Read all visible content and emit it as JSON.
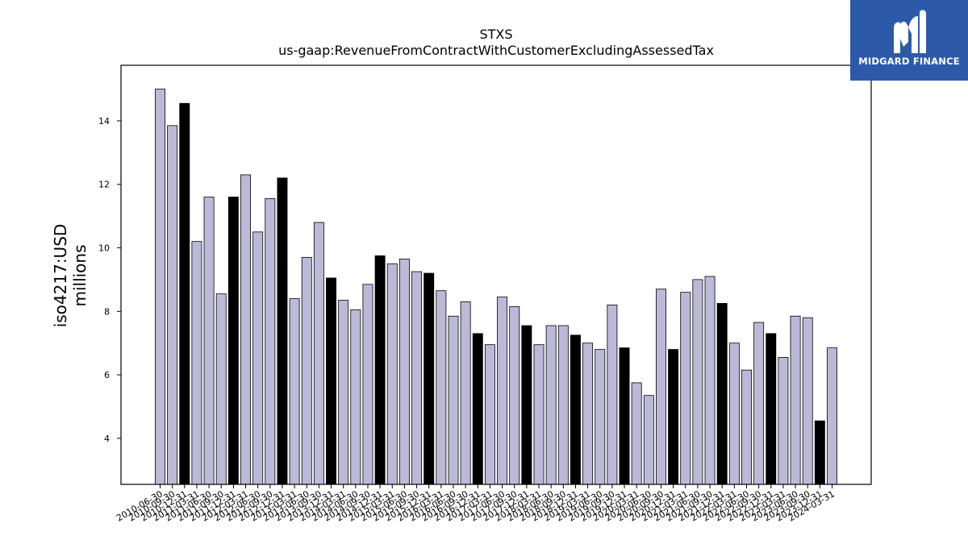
{
  "logo": {
    "text": "MIDGARD FINANCE"
  },
  "colors": {
    "bar_default": "#bcb9d8",
    "bar_highlight": "#000000",
    "bar_edge": "#000000",
    "logo_bg": "#2d5aa8"
  },
  "chart_data": {
    "type": "bar",
    "title": "STXS",
    "subtitle": "us-gaap:RevenueFromContractWithCustomerExcludingAssessedTax",
    "ylabel_line1": "iso4217:USD",
    "ylabel_line2": "millions",
    "xlabel": "",
    "ylim": [
      2.55,
      15.75
    ],
    "yticks": [
      4,
      6,
      8,
      10,
      12,
      14
    ],
    "grid": false,
    "categories": [
      "2010-06-30",
      "2010-09-30",
      "2010-12-31",
      "2011-03-31",
      "2011-06-30",
      "2011-09-30",
      "2011-12-31",
      "2012-03-31",
      "2012-06-30",
      "2012-09-30",
      "2012-12-31",
      "2013-03-31",
      "2013-06-30",
      "2013-09-30",
      "2013-12-31",
      "2014-03-31",
      "2014-06-30",
      "2014-09-30",
      "2014-12-31",
      "2015-03-31",
      "2015-06-30",
      "2015-09-30",
      "2015-12-31",
      "2016-03-31",
      "2016-06-30",
      "2016-09-30",
      "2016-12-31",
      "2017-03-31",
      "2017-06-30",
      "2017-09-30",
      "2017-12-31",
      "2018-03-31",
      "2018-06-30",
      "2018-09-30",
      "2018-12-31",
      "2019-03-31",
      "2019-06-30",
      "2019-09-30",
      "2019-12-31",
      "2020-03-31",
      "2020-06-30",
      "2020-09-30",
      "2020-12-31",
      "2021-03-31",
      "2021-06-30",
      "2021-09-30",
      "2021-12-31",
      "2022-03-31",
      "2022-06-30",
      "2022-09-30",
      "2022-12-31",
      "2023-03-31",
      "2023-06-30",
      "2023-09-30",
      "2023-12-31",
      "2024-03-31"
    ],
    "values": [
      15.0,
      13.85,
      14.55,
      10.2,
      11.6,
      8.55,
      11.6,
      12.3,
      10.5,
      11.55,
      12.2,
      8.4,
      9.7,
      10.8,
      9.05,
      8.35,
      8.05,
      8.85,
      9.75,
      9.5,
      9.65,
      9.25,
      9.2,
      8.65,
      7.85,
      8.3,
      7.3,
      6.95,
      8.45,
      8.15,
      7.55,
      6.95,
      7.55,
      7.55,
      7.25,
      7.0,
      6.8,
      8.2,
      6.85,
      5.75,
      5.35,
      8.7,
      6.8,
      8.6,
      9.0,
      9.1,
      8.25,
      7.0,
      6.15,
      7.65,
      7.3,
      6.55,
      7.85,
      7.8,
      4.55,
      6.85
    ],
    "highlighted": [
      false,
      false,
      true,
      false,
      false,
      false,
      true,
      false,
      false,
      false,
      true,
      false,
      false,
      false,
      true,
      false,
      false,
      false,
      true,
      false,
      false,
      false,
      true,
      false,
      false,
      false,
      true,
      false,
      false,
      false,
      true,
      false,
      false,
      false,
      true,
      false,
      false,
      false,
      true,
      false,
      false,
      false,
      true,
      false,
      false,
      false,
      true,
      false,
      false,
      false,
      true,
      false,
      false,
      false,
      true,
      false
    ]
  }
}
